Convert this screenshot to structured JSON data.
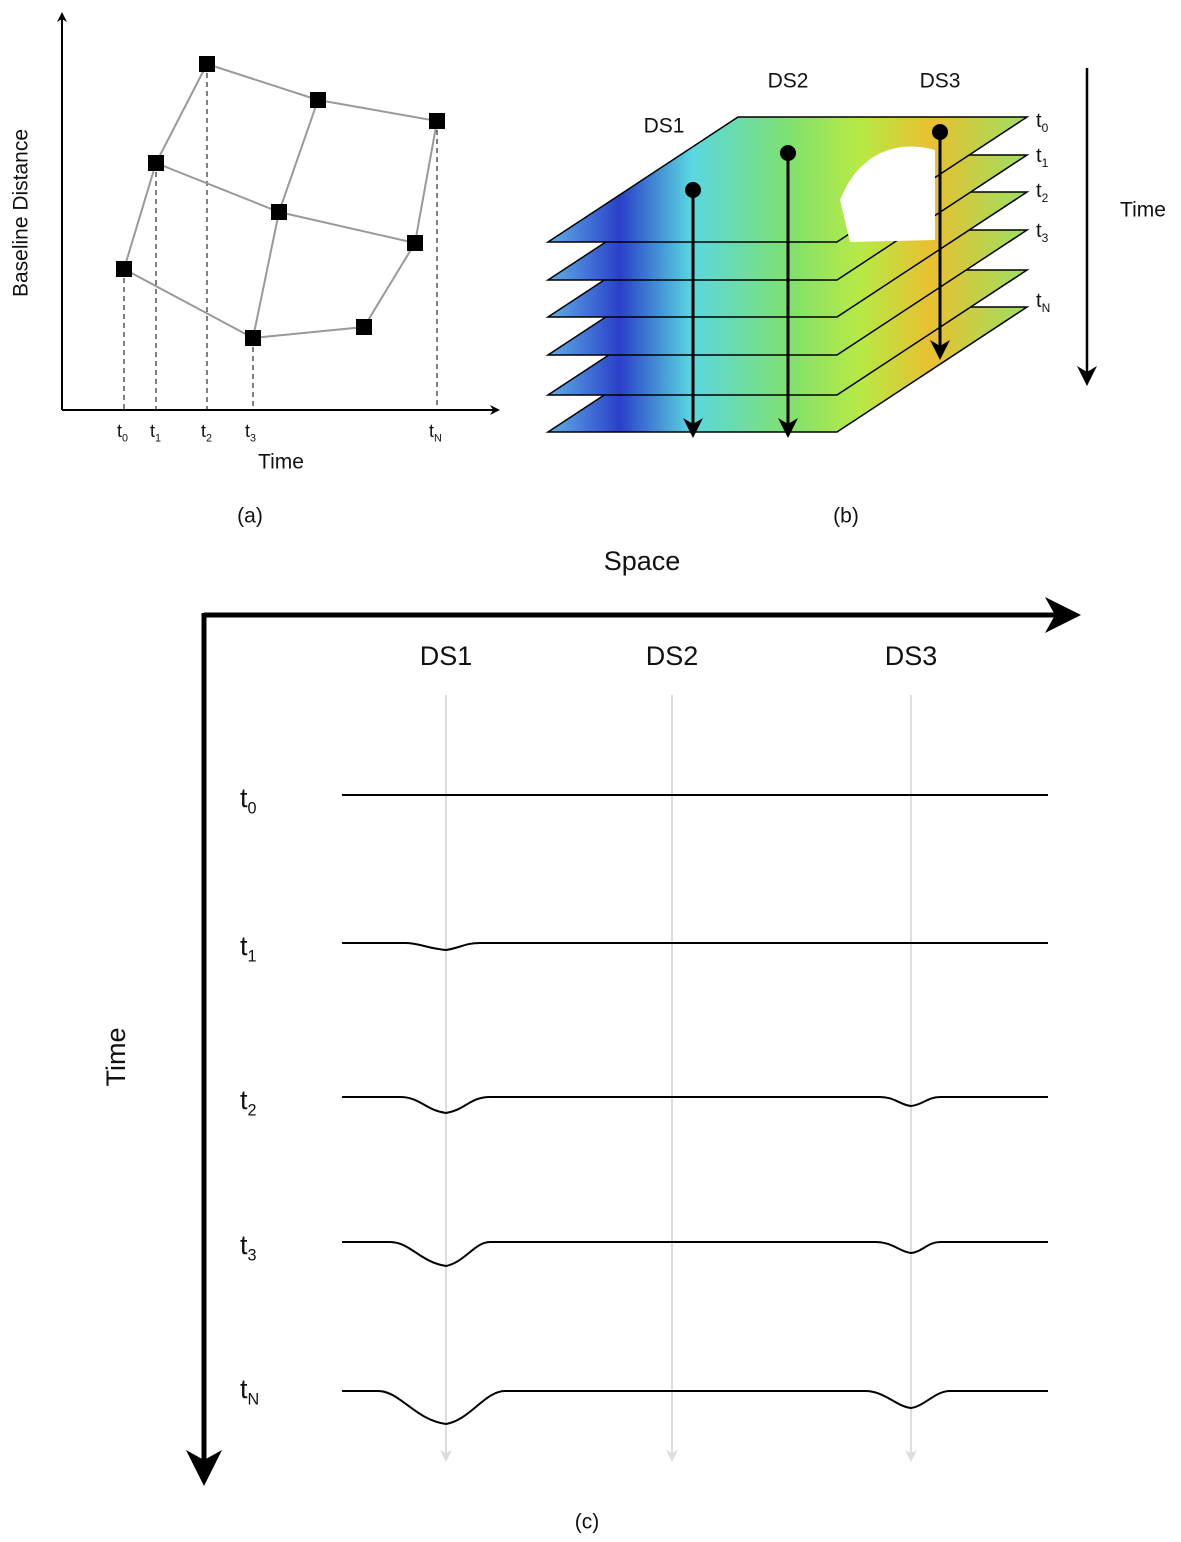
{
  "panel_a": {
    "y_axis_label": "Baseline Distance",
    "x_axis_label": "Time",
    "ticks": [
      {
        "t": "t",
        "sub": "0"
      },
      {
        "t": "t",
        "sub": "1"
      },
      {
        "t": "t",
        "sub": "2"
      },
      {
        "t": "t",
        "sub": "3"
      },
      {
        "t": "t",
        "sub": "N"
      }
    ],
    "caption": "(a)"
  },
  "panel_b": {
    "stack_labels": [
      "DS1",
      "DS2",
      "DS3"
    ],
    "layer_labels": [
      {
        "t": "t",
        "sub": "0"
      },
      {
        "t": "t",
        "sub": "1"
      },
      {
        "t": "t",
        "sub": "2"
      },
      {
        "t": "t",
        "sub": "3"
      },
      {
        "t": "t",
        "sub": "N"
      }
    ],
    "axis_label": "Time",
    "caption": "(b)"
  },
  "panel_c": {
    "x_axis_label": "Space",
    "y_axis_label": "Time",
    "columns": [
      "DS1",
      "DS2",
      "DS3"
    ],
    "rows": [
      {
        "t": "t",
        "sub": "0"
      },
      {
        "t": "t",
        "sub": "1"
      },
      {
        "t": "t",
        "sub": "2"
      },
      {
        "t": "t",
        "sub": "3"
      },
      {
        "t": "t",
        "sub": "N"
      }
    ],
    "caption": "(c)"
  }
}
